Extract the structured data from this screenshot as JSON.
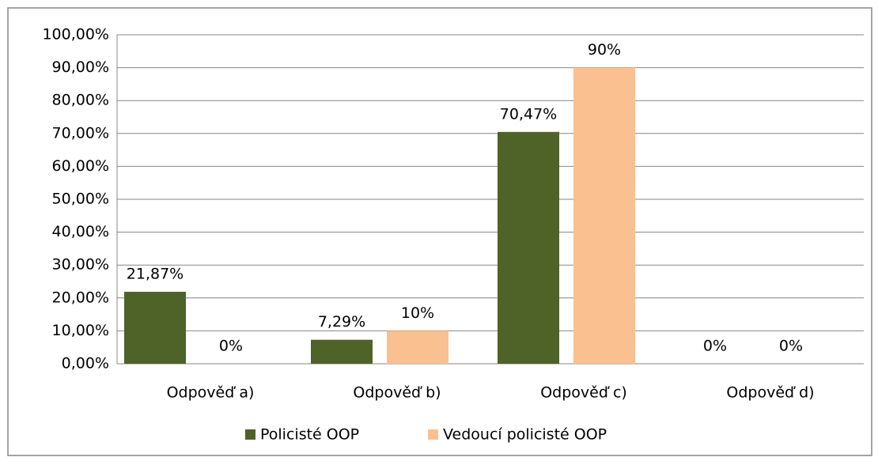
{
  "chart_data": {
    "type": "bar",
    "categories": [
      "Odpověď a)",
      "Odpověď b)",
      "Odpověď c)",
      "Odpověď d)"
    ],
    "series": [
      {
        "name": "Policisté OOP",
        "color": "#4f6228",
        "values": [
          21.87,
          7.29,
          70.47,
          0
        ],
        "value_labels": [
          "21,87%",
          "7,29%",
          "70,47%",
          "0%"
        ]
      },
      {
        "name": "Vedoucí policisté OOP",
        "color": "#fac090",
        "values": [
          0,
          10,
          90,
          0
        ],
        "value_labels": [
          "0%",
          "10%",
          "90%",
          "0%"
        ]
      }
    ],
    "ylim": [
      0,
      100
    ],
    "yticks": [
      {
        "value": 0,
        "label": "0,00%"
      },
      {
        "value": 10,
        "label": "10,00%"
      },
      {
        "value": 20,
        "label": "20,00%"
      },
      {
        "value": 30,
        "label": "30,00%"
      },
      {
        "value": 40,
        "label": "40,00%"
      },
      {
        "value": 50,
        "label": "50,00%"
      },
      {
        "value": 60,
        "label": "60,00%"
      },
      {
        "value": 70,
        "label": "70,00%"
      },
      {
        "value": 80,
        "label": "80,00%"
      },
      {
        "value": 90,
        "label": "90,00%"
      },
      {
        "value": 100,
        "label": "100,00%"
      }
    ],
    "grid": true,
    "legend": "bottom"
  }
}
